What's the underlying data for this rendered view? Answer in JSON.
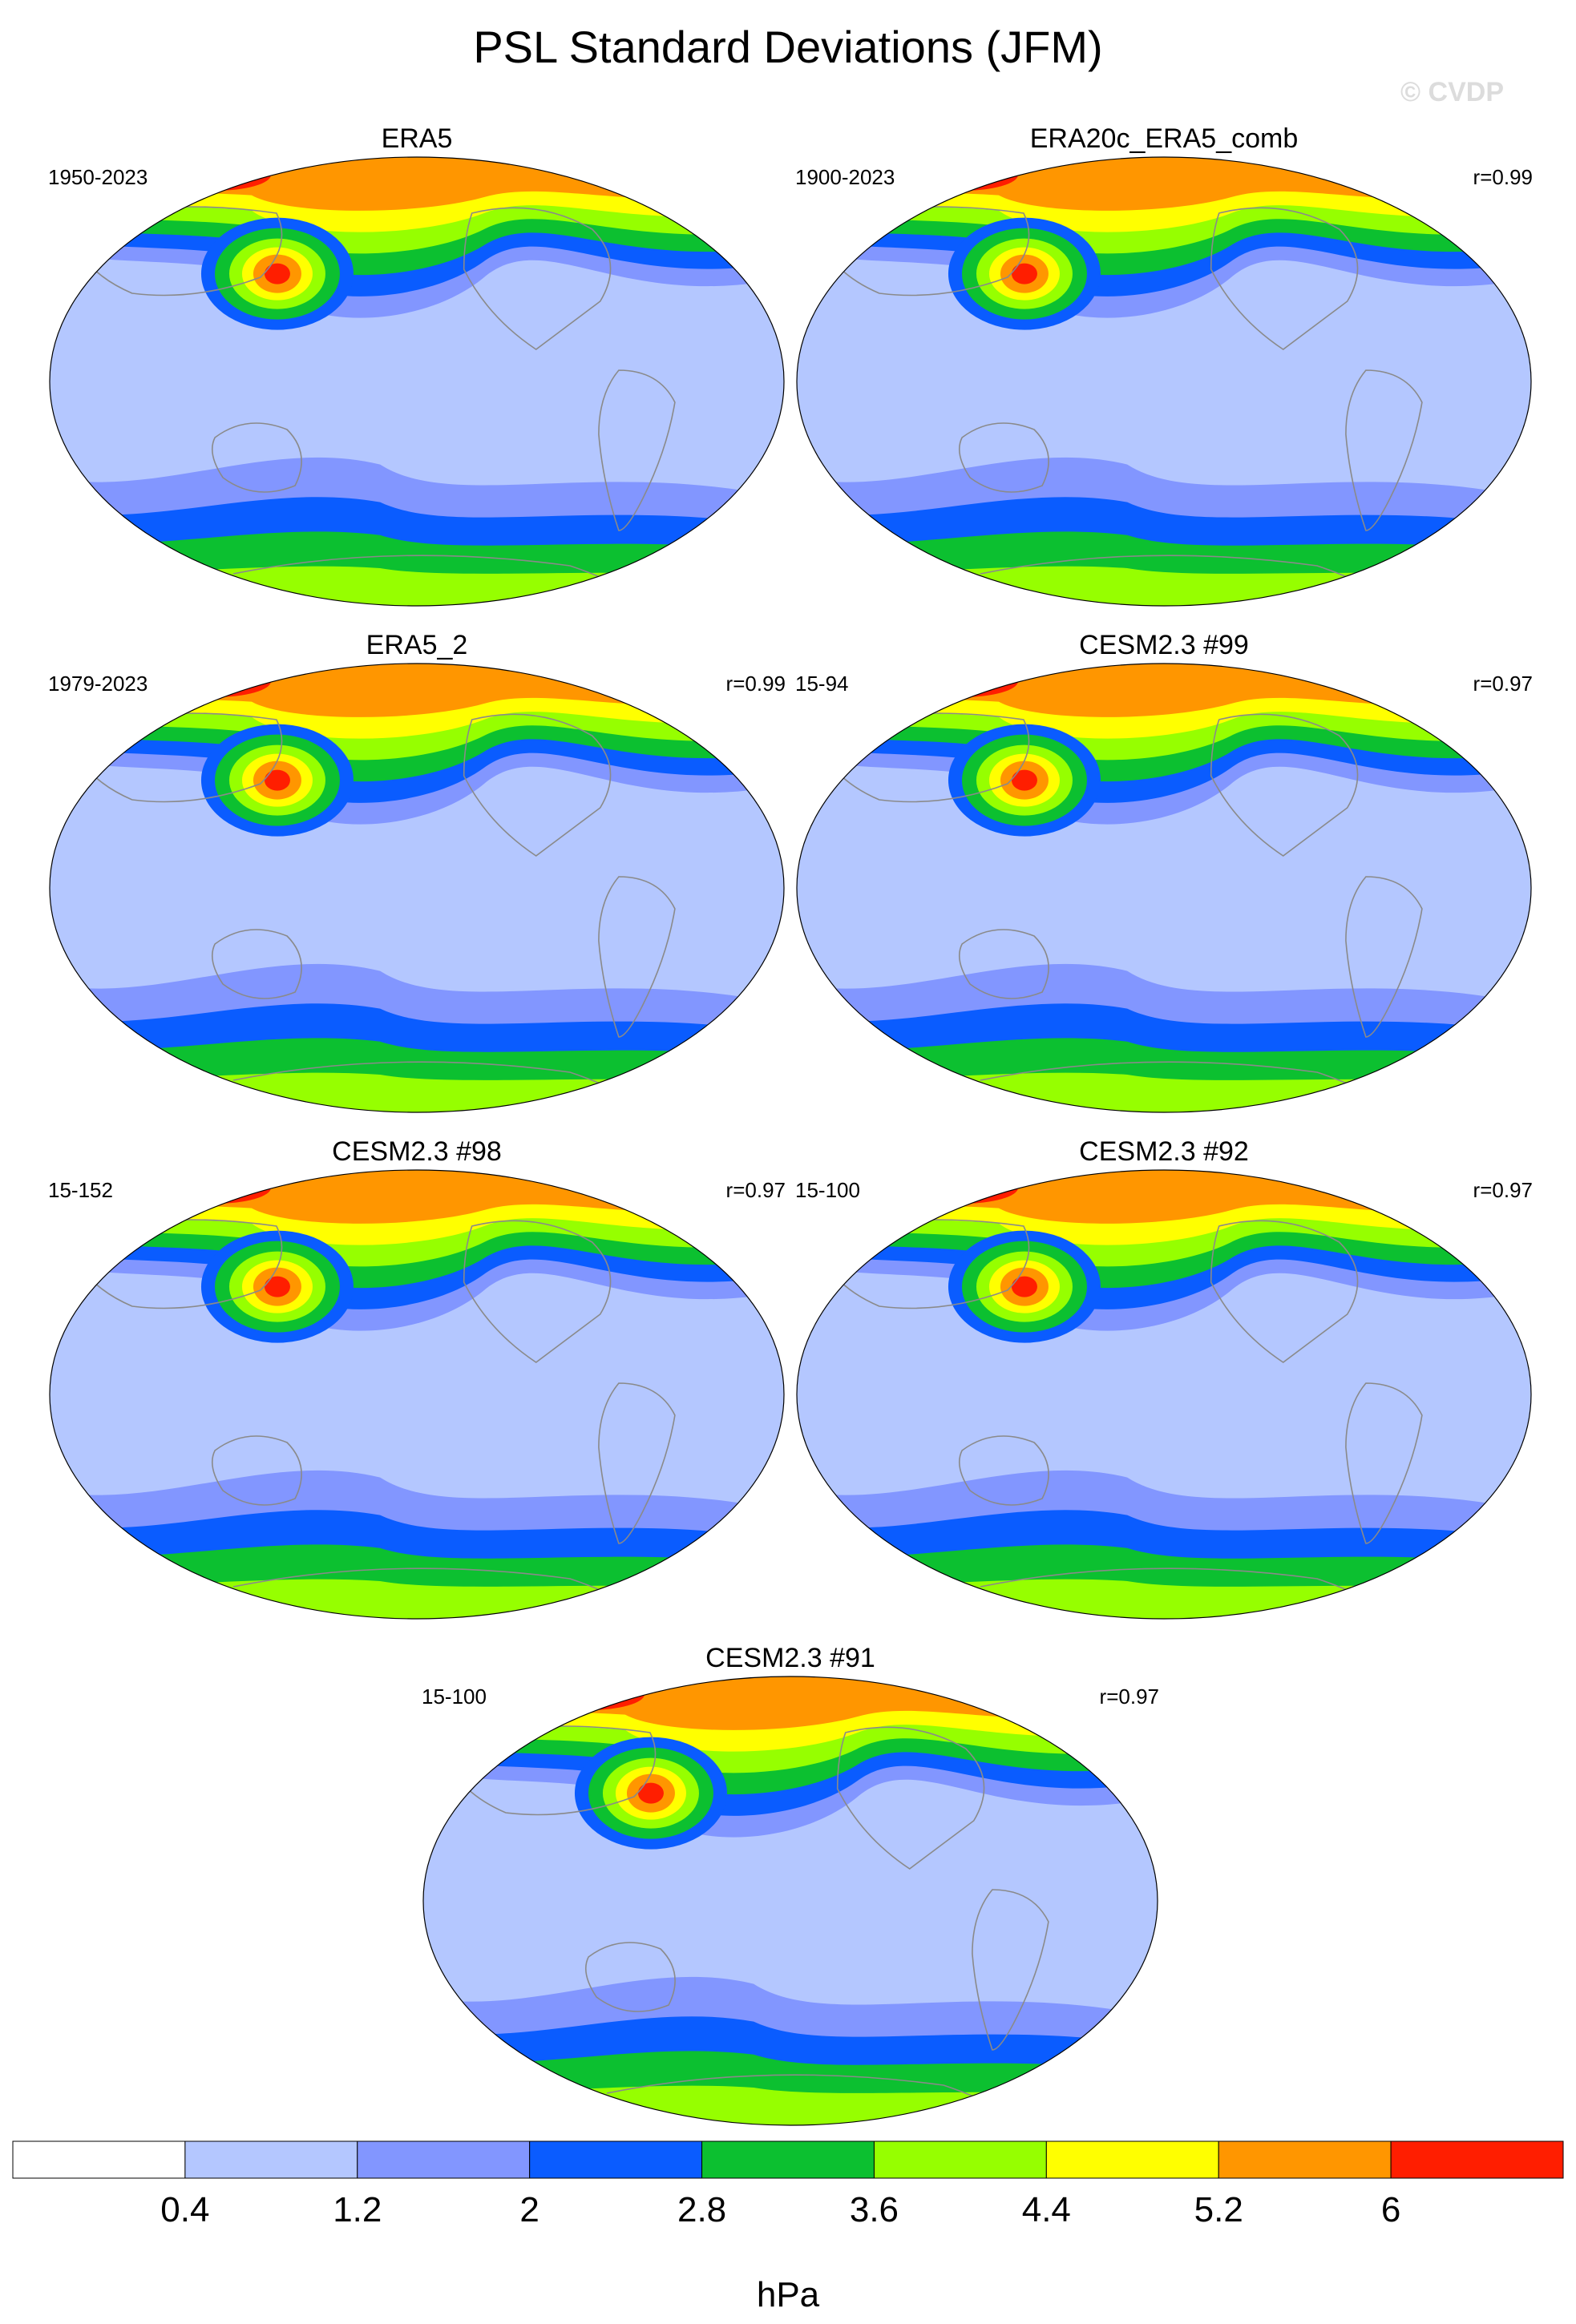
{
  "figure": {
    "title": "PSL Standard Deviations (JFM)",
    "watermark": "© CVDP"
  },
  "chart_data": {
    "type": "heatmap",
    "projection": "Robinson-like global map",
    "levels": [
      0.4,
      1.2,
      2,
      2.8,
      3.6,
      4.4,
      5.2,
      6
    ],
    "level_colors": [
      "#ffffff",
      "#b4c7ff",
      "#8296ff",
      "#0a5cff",
      "#0cc030",
      "#96ff00",
      "#ffff00",
      "#ff9600",
      "#ff1e00"
    ],
    "colorbar_label": "hPa",
    "panels": [
      {
        "name": "ERA5",
        "period": "1950-2023",
        "corr": ""
      },
      {
        "name": "ERA20c_ERA5_comb",
        "period": "1900-2023",
        "corr": "r=0.99"
      },
      {
        "name": "ERA5_2",
        "period": "1979-2023",
        "corr": "r=0.99"
      },
      {
        "name": "CESM2.3 #99",
        "period": "15-94",
        "corr": "r=0.97"
      },
      {
        "name": "CESM2.3 #98",
        "period": "15-152",
        "corr": "r=0.97"
      },
      {
        "name": "CESM2.3 #92",
        "period": "15-100",
        "corr": "r=0.97"
      },
      {
        "name": "CESM2.3 #91",
        "period": "15-100",
        "corr": "r=0.97"
      }
    ]
  },
  "colors": {
    "coast": "#8a8a8a",
    "text": "#000000",
    "watermark": "#dcdcdc"
  }
}
